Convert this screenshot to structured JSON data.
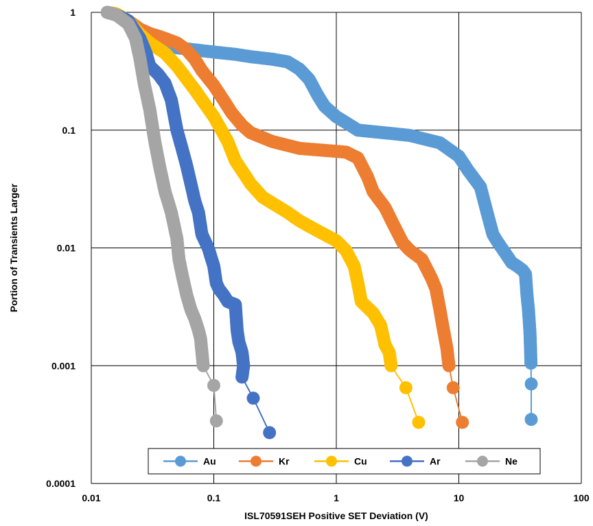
{
  "chart_data": {
    "type": "scatter",
    "title": "",
    "xlabel": "ISL70591SEH Positive SET Deviation (V)",
    "ylabel": "Portion of Transients Larger",
    "x_scale": "log",
    "y_scale": "log",
    "xlim": [
      0.01,
      100
    ],
    "ylim": [
      0.0001,
      1
    ],
    "x_ticks": [
      "0.01",
      "0.1",
      "1",
      "10",
      "100"
    ],
    "y_ticks": [
      "0.0001",
      "0.001",
      "0.01",
      "0.1",
      "1"
    ],
    "grid": true,
    "legend_position": "bottom",
    "series": [
      {
        "name": "Au",
        "color": "#5B9BD5",
        "points": [
          [
            0.0135,
            1
          ],
          [
            0.016,
            0.97
          ],
          [
            0.02,
            0.85
          ],
          [
            0.025,
            0.7
          ],
          [
            0.03,
            0.6
          ],
          [
            0.04,
            0.53
          ],
          [
            0.05,
            0.5
          ],
          [
            0.07,
            0.48
          ],
          [
            0.1,
            0.46
          ],
          [
            0.15,
            0.44
          ],
          [
            0.2,
            0.42
          ],
          [
            0.3,
            0.4
          ],
          [
            0.4,
            0.38
          ],
          [
            0.5,
            0.33
          ],
          [
            0.6,
            0.27
          ],
          [
            0.7,
            0.2
          ],
          [
            0.8,
            0.16
          ],
          [
            1,
            0.13
          ],
          [
            1.3,
            0.11
          ],
          [
            1.5,
            0.1
          ],
          [
            2,
            0.097
          ],
          [
            3,
            0.093
          ],
          [
            4,
            0.09
          ],
          [
            5,
            0.085
          ],
          [
            7,
            0.078
          ],
          [
            10,
            0.06
          ],
          [
            12,
            0.045
          ],
          [
            15,
            0.033
          ],
          [
            17,
            0.02
          ],
          [
            19,
            0.013
          ],
          [
            21,
            0.011
          ],
          [
            24,
            0.009
          ],
          [
            27,
            0.0075
          ],
          [
            30,
            0.007
          ],
          [
            33,
            0.0065
          ],
          [
            35,
            0.006
          ],
          [
            36,
            0.004
          ],
          [
            37,
            0.003
          ],
          [
            38,
            0.002
          ],
          [
            38.5,
            0.0014
          ],
          [
            38.8,
            0.00105
          ],
          [
            39,
            0.0007
          ],
          [
            39,
            0.00035
          ]
        ]
      },
      {
        "name": "Kr",
        "color": "#ED7D31",
        "points": [
          [
            0.0135,
            1
          ],
          [
            0.016,
            0.95
          ],
          [
            0.02,
            0.85
          ],
          [
            0.025,
            0.72
          ],
          [
            0.03,
            0.66
          ],
          [
            0.035,
            0.63
          ],
          [
            0.04,
            0.6
          ],
          [
            0.05,
            0.55
          ],
          [
            0.06,
            0.48
          ],
          [
            0.07,
            0.4
          ],
          [
            0.08,
            0.32
          ],
          [
            0.1,
            0.24
          ],
          [
            0.12,
            0.18
          ],
          [
            0.14,
            0.14
          ],
          [
            0.17,
            0.11
          ],
          [
            0.2,
            0.095
          ],
          [
            0.3,
            0.08
          ],
          [
            0.5,
            0.07
          ],
          [
            0.7,
            0.068
          ],
          [
            1,
            0.066
          ],
          [
            1.2,
            0.065
          ],
          [
            1.5,
            0.058
          ],
          [
            1.8,
            0.04
          ],
          [
            2,
            0.03
          ],
          [
            2.5,
            0.022
          ],
          [
            3,
            0.015
          ],
          [
            3.5,
            0.011
          ],
          [
            4,
            0.0095
          ],
          [
            5,
            0.008
          ],
          [
            6,
            0.0055
          ],
          [
            6.5,
            0.0045
          ],
          [
            7,
            0.003
          ],
          [
            7.5,
            0.002
          ],
          [
            8,
            0.0014
          ],
          [
            8.3,
            0.001
          ],
          [
            9,
            0.00065
          ],
          [
            10.7,
            0.00033
          ]
        ]
      },
      {
        "name": "Cu",
        "color": "#FFC000",
        "points": [
          [
            0.0135,
            1
          ],
          [
            0.016,
            0.97
          ],
          [
            0.02,
            0.85
          ],
          [
            0.025,
            0.65
          ],
          [
            0.03,
            0.55
          ],
          [
            0.04,
            0.45
          ],
          [
            0.05,
            0.35
          ],
          [
            0.07,
            0.22
          ],
          [
            0.1,
            0.13
          ],
          [
            0.13,
            0.08
          ],
          [
            0.15,
            0.055
          ],
          [
            0.2,
            0.035
          ],
          [
            0.25,
            0.027
          ],
          [
            0.3,
            0.024
          ],
          [
            0.4,
            0.02
          ],
          [
            0.5,
            0.017
          ],
          [
            0.7,
            0.014
          ],
          [
            1,
            0.0115
          ],
          [
            1.2,
            0.0095
          ],
          [
            1.4,
            0.007
          ],
          [
            1.5,
            0.005
          ],
          [
            1.6,
            0.0035
          ],
          [
            2,
            0.0028
          ],
          [
            2.3,
            0.0022
          ],
          [
            2.5,
            0.0015
          ],
          [
            2.7,
            0.0013
          ],
          [
            2.8,
            0.001
          ],
          [
            3.7,
            0.00065
          ],
          [
            4.7,
            0.00033
          ]
        ]
      },
      {
        "name": "Ar",
        "color": "#4472C4",
        "points": [
          [
            0.0135,
            1
          ],
          [
            0.016,
            0.95
          ],
          [
            0.02,
            0.85
          ],
          [
            0.025,
            0.6
          ],
          [
            0.028,
            0.45
          ],
          [
            0.03,
            0.35
          ],
          [
            0.035,
            0.3
          ],
          [
            0.04,
            0.25
          ],
          [
            0.045,
            0.18
          ],
          [
            0.05,
            0.1
          ],
          [
            0.055,
            0.07
          ],
          [
            0.06,
            0.05
          ],
          [
            0.065,
            0.035
          ],
          [
            0.07,
            0.025
          ],
          [
            0.075,
            0.02
          ],
          [
            0.08,
            0.013
          ],
          [
            0.09,
            0.01
          ],
          [
            0.1,
            0.007
          ],
          [
            0.105,
            0.005
          ],
          [
            0.11,
            0.0045
          ],
          [
            0.12,
            0.004
          ],
          [
            0.13,
            0.0035
          ],
          [
            0.15,
            0.0033
          ],
          [
            0.155,
            0.002
          ],
          [
            0.16,
            0.0016
          ],
          [
            0.17,
            0.0013
          ],
          [
            0.175,
            0.001
          ],
          [
            0.17,
            0.0008
          ],
          [
            0.21,
            0.00053
          ],
          [
            0.285,
            0.00027
          ]
        ]
      },
      {
        "name": "Ne",
        "color": "#A5A5A5",
        "points": [
          [
            0.0135,
            1
          ],
          [
            0.016,
            0.95
          ],
          [
            0.02,
            0.8
          ],
          [
            0.023,
            0.6
          ],
          [
            0.025,
            0.4
          ],
          [
            0.027,
            0.25
          ],
          [
            0.03,
            0.15
          ],
          [
            0.033,
            0.08
          ],
          [
            0.036,
            0.05
          ],
          [
            0.04,
            0.03
          ],
          [
            0.045,
            0.02
          ],
          [
            0.05,
            0.012
          ],
          [
            0.052,
            0.008
          ],
          [
            0.055,
            0.006
          ],
          [
            0.06,
            0.004
          ],
          [
            0.065,
            0.003
          ],
          [
            0.07,
            0.0025
          ],
          [
            0.075,
            0.002
          ],
          [
            0.078,
            0.0017
          ],
          [
            0.08,
            0.0013
          ],
          [
            0.082,
            0.001
          ],
          [
            0.1,
            0.00068
          ],
          [
            0.105,
            0.00034
          ]
        ]
      }
    ]
  }
}
